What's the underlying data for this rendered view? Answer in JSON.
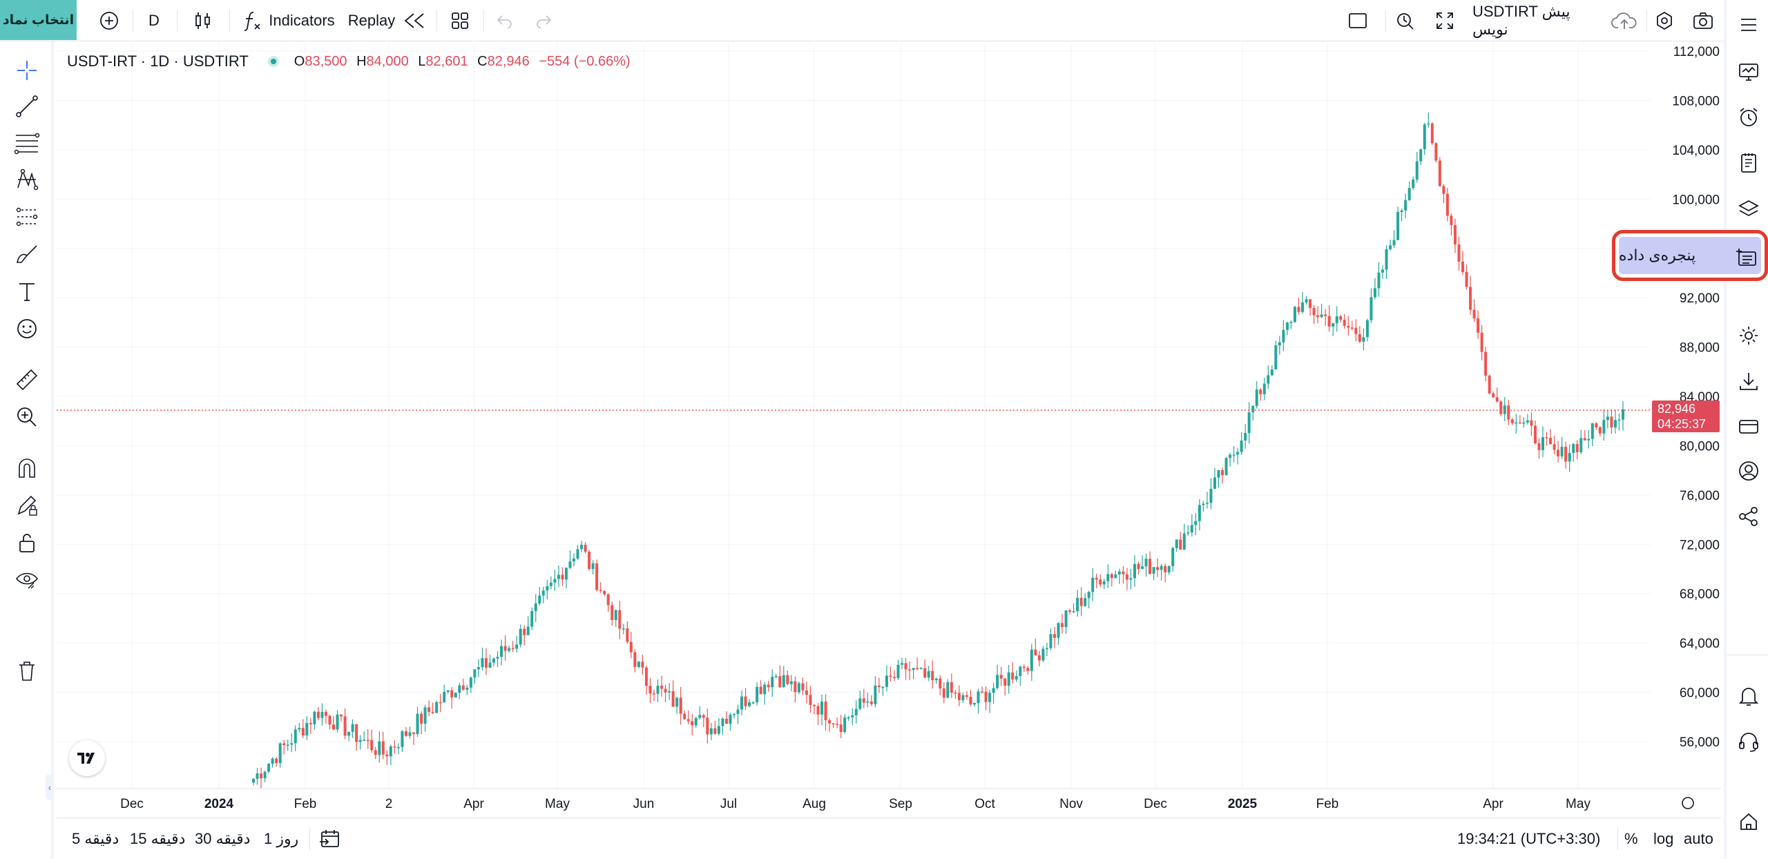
{
  "toolbar": {
    "symbol_button": "انتخاب نماد",
    "interval": "D",
    "indicators": "Indicators",
    "replay": "Replay",
    "right_title": "USDTIRT پیش نویس"
  },
  "legend": {
    "title": "USDT-IRT · 1D · USDTIRT",
    "o_label": "O",
    "o_value": "83,500",
    "h_label": "H",
    "h_value": "84,000",
    "l_label": "L",
    "l_value": "82,601",
    "c_label": "C",
    "c_value": "82,946",
    "change": "−554 (−0.66%)"
  },
  "price_tag": {
    "price": "82,946",
    "countdown": "04:25:37"
  },
  "tooltip_panel": {
    "label": "پنجره‌ی داده"
  },
  "bottom": {
    "tf_5m": "5 دقیقه",
    "tf_15m": "15 دقیقه",
    "tf_30m": "30 دقیقه",
    "tf_1d": "1 روز",
    "clock": "19:34:21 (UTC+3:30)",
    "percent": "%",
    "log": "log",
    "auto": "auto"
  },
  "colors": {
    "up": "#26a69a",
    "down": "#ef5350",
    "accent": "#5bc4bf",
    "highlight": "#e23b2e"
  },
  "chart_data": {
    "type": "candlestick",
    "symbol": "USDT-IRT",
    "interval": "1D",
    "y_ticks": [
      "112,000",
      "108,000",
      "104,000",
      "100,000",
      "96,000",
      "92,000",
      "88,000",
      "84,000",
      "80,000",
      "76,000",
      "72,000",
      "68,000",
      "64,000",
      "60,000",
      "56,000"
    ],
    "x_ticks": [
      "Dec",
      "2024",
      "Feb",
      "2",
      "Apr",
      "May",
      "Jun",
      "Jul",
      "Aug",
      "Sep",
      "Oct",
      "Nov",
      "Dec",
      "2025",
      "Feb",
      "Apr",
      "May"
    ],
    "ylim": [
      53000,
      113000
    ],
    "last_close": 82946,
    "approx_close_path": [
      {
        "t": "Jan 2024",
        "v": 53000
      },
      {
        "t": "Jan 2024",
        "v": 58500
      },
      {
        "t": "Feb 2024",
        "v": 55000
      },
      {
        "t": "Mar 2024",
        "v": 60000
      },
      {
        "t": "Apr 2024",
        "v": 64000
      },
      {
        "t": "Apr 2024",
        "v": 72000
      },
      {
        "t": "May 2024",
        "v": 61000
      },
      {
        "t": "Jun 2024",
        "v": 57000
      },
      {
        "t": "Jul 2024",
        "v": 61500
      },
      {
        "t": "Aug 2024",
        "v": 57500
      },
      {
        "t": "Aug 2024",
        "v": 62000
      },
      {
        "t": "Sep 2024",
        "v": 59000
      },
      {
        "t": "Oct 2024",
        "v": 63000
      },
      {
        "t": "Nov 2024",
        "v": 69500
      },
      {
        "t": "Dec 2024",
        "v": 70500
      },
      {
        "t": "Jan 2025",
        "v": 79000
      },
      {
        "t": "Feb 2025",
        "v": 91500
      },
      {
        "t": "Mar 2025",
        "v": 89000
      },
      {
        "t": "Apr 2025",
        "v": 106000
      },
      {
        "t": "Apr 2025",
        "v": 84000
      },
      {
        "t": "May 2025",
        "v": 79000
      },
      {
        "t": "May 2025",
        "v": 82946
      }
    ]
  }
}
